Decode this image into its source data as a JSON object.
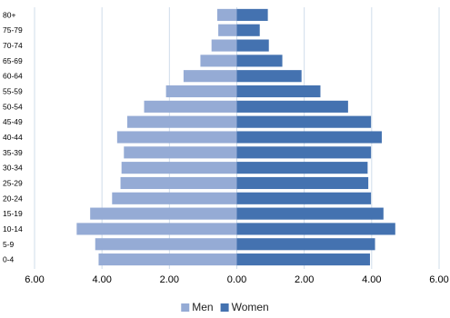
{
  "chart_data": {
    "type": "bar",
    "orientation": "horizontal",
    "layout": "population-pyramid",
    "categories": [
      "0-4",
      "5-9",
      "10-14",
      "15-19",
      "20-24",
      "25-29",
      "30-34",
      "35-39",
      "40-44",
      "45-49",
      "50-54",
      "55-59",
      "60-64",
      "65-69",
      "70-74",
      "75-79",
      "80+"
    ],
    "series": [
      {
        "name": "Men",
        "side": "left",
        "color": "#95abd5",
        "values": [
          4.1,
          4.2,
          4.75,
          4.35,
          3.7,
          3.45,
          3.42,
          3.35,
          3.55,
          3.25,
          2.75,
          2.1,
          1.58,
          1.08,
          0.75,
          0.55,
          0.58
        ]
      },
      {
        "name": "Women",
        "side": "right",
        "color": "#4472b0",
        "values": [
          3.95,
          4.1,
          4.7,
          4.35,
          3.98,
          3.9,
          3.88,
          3.98,
          4.3,
          3.98,
          3.3,
          2.48,
          1.92,
          1.35,
          0.95,
          0.68,
          0.92
        ]
      }
    ],
    "x_ticks": [
      "6.00",
      "4.00",
      "2.00",
      "0.00",
      "2.00",
      "4.00",
      "6.00"
    ],
    "xlim": [
      -6,
      6
    ],
    "title": "",
    "xlabel": "",
    "ylabel": "",
    "grid": "vertical",
    "legend": "bottom"
  }
}
